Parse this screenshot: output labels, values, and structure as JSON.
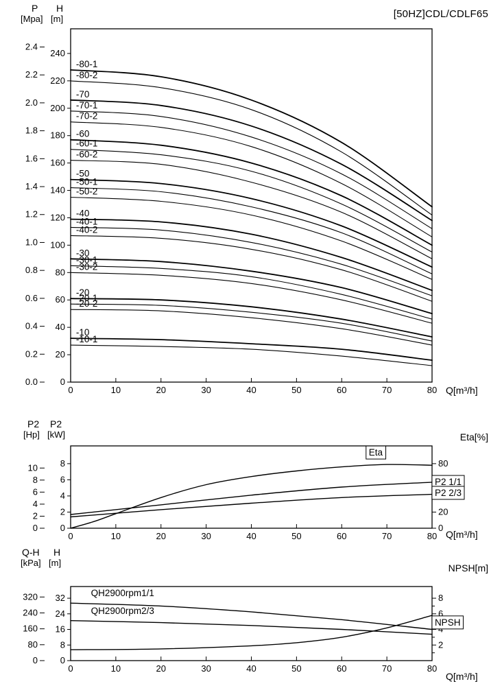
{
  "chart_data": [
    {
      "type": "line",
      "title": "[50HZ]CDL/CDLF65",
      "headers": {
        "left_outer_top": "P",
        "left_outer_unit": "[Mpa]",
        "left_inner_top": "H",
        "left_inner_unit": "[m]"
      },
      "x_axis": {
        "label": "Q[m³/h]",
        "ticks": [
          0,
          10,
          20,
          30,
          40,
          50,
          60,
          70,
          80
        ],
        "range": [
          0,
          80
        ]
      },
      "y_inner": {
        "unit": "m",
        "ticks": [
          0,
          20,
          40,
          60,
          80,
          100,
          120,
          140,
          160,
          180,
          200,
          220,
          240
        ],
        "range": [
          0,
          258
        ]
      },
      "y_outer": {
        "unit": "Mpa",
        "tick_labels": [
          "0.0",
          "0.2",
          "0.4",
          "0.6",
          "0.8",
          "1.0",
          "1.2",
          "1.4",
          "1.6",
          "1.8",
          "2.0",
          "2.2",
          "2.4"
        ],
        "unit_factor": 101.97
      },
      "q_points": [
        0,
        20,
        40,
        60,
        80
      ],
      "series": [
        {
          "name": "-80-1",
          "bold": true,
          "h": [
            228,
            223,
            206,
            175,
            128
          ]
        },
        {
          "name": "-80-2",
          "h": [
            220,
            215,
            199,
            168,
            122
          ]
        },
        {
          "name": "-70",
          "bold": true,
          "h": [
            206,
            202,
            187,
            159,
            118
          ]
        },
        {
          "name": "-70-1",
          "h": [
            198,
            194,
            179,
            152,
            112
          ]
        },
        {
          "name": "-70-2",
          "h": [
            190,
            186,
            172,
            145,
            106
          ]
        },
        {
          "name": "-60",
          "bold": true,
          "h": [
            177,
            173,
            160,
            136,
            100
          ]
        },
        {
          "name": "-60-1",
          "h": [
            170,
            166,
            154,
            130,
            95
          ]
        },
        {
          "name": "-60-2",
          "h": [
            162,
            159,
            146,
            124,
            90
          ]
        },
        {
          "name": "-50",
          "bold": true,
          "h": [
            148,
            145,
            134,
            114,
            84
          ]
        },
        {
          "name": "-50-1",
          "h": [
            142,
            139,
            128,
            109,
            79
          ]
        },
        {
          "name": "-50-2",
          "h": [
            135,
            132,
            122,
            103,
            75
          ]
        },
        {
          "name": "-40",
          "bold": true,
          "h": [
            119,
            117,
            108,
            91,
            67
          ]
        },
        {
          "name": "-40-1",
          "h": [
            113,
            111,
            102,
            86,
            63
          ]
        },
        {
          "name": "-40-2",
          "h": [
            107,
            105,
            97,
            82,
            59
          ]
        },
        {
          "name": "-30",
          "bold": true,
          "h": [
            90,
            88,
            81,
            69,
            50
          ]
        },
        {
          "name": "-30-1",
          "h": [
            85,
            83,
            77,
            64,
            46
          ]
        },
        {
          "name": "-30-2",
          "h": [
            80,
            78,
            72,
            60,
            43
          ]
        },
        {
          "name": "-20",
          "bold": true,
          "h": [
            61,
            60,
            55,
            46,
            33
          ]
        },
        {
          "name": "-20-1",
          "h": [
            57,
            56,
            51,
            43,
            30
          ]
        },
        {
          "name": "-20-2",
          "h": [
            53,
            52,
            47,
            39,
            27
          ]
        },
        {
          "name": "-10",
          "bold": true,
          "h": [
            32,
            31,
            28,
            24,
            16
          ]
        },
        {
          "name": "-10-1",
          "h": [
            27,
            26,
            24,
            19,
            12
          ]
        }
      ]
    },
    {
      "type": "line",
      "headers": {
        "left_outer_top": "P2",
        "left_outer_unit": "[Hp]",
        "left_inner_top": "P2",
        "left_inner_unit": "[kW]",
        "right": "Eta[%]"
      },
      "x_axis": {
        "label": "Q[m³/h]",
        "ticks": [
          0,
          10,
          20,
          30,
          40,
          50,
          60,
          70,
          80
        ],
        "range": [
          0,
          80
        ]
      },
      "y_inner": {
        "unit": "kW",
        "ticks": [
          0,
          2,
          4,
          6,
          8
        ],
        "range": [
          0,
          10.2
        ]
      },
      "y_outer": {
        "unit": "Hp",
        "tick_labels": [
          "0",
          "2",
          "4",
          "6",
          "8",
          "10"
        ],
        "unit_factor": 0.7457
      },
      "y_right": {
        "unit": "%",
        "ticks": [
          0,
          20,
          40,
          60,
          80
        ],
        "unit_factor": 0.1
      },
      "series": [
        {
          "name": "Eta",
          "scale": "right",
          "x": [
            0,
            5,
            10,
            20,
            30,
            40,
            50,
            60,
            70,
            80
          ],
          "y": [
            0,
            8,
            18,
            38,
            54,
            64,
            71,
            76,
            79,
            78
          ],
          "label": {
            "q": 66,
            "v": 90,
            "boxed": true
          }
        },
        {
          "name": "P2 1/1",
          "scale": "left",
          "x": [
            0,
            20,
            40,
            60,
            80
          ],
          "y": [
            1.7,
            2.9,
            4.1,
            5.1,
            5.7
          ],
          "label": {
            "q": 80.6,
            "v": 5.35,
            "boxed": true
          }
        },
        {
          "name": "P2 2/3",
          "scale": "left",
          "x": [
            0,
            20,
            40,
            60,
            80
          ],
          "y": [
            1.4,
            2.3,
            3.1,
            3.8,
            4.2
          ],
          "label": {
            "q": 80.6,
            "v": 4.0,
            "boxed": true
          }
        }
      ]
    },
    {
      "type": "line",
      "headers": {
        "left_outer_top": "Q-H",
        "left_outer_unit": "[kPa]",
        "left_inner_top": "H",
        "left_inner_unit": "[m]",
        "right": "NPSH[m]"
      },
      "x_axis": {
        "label": "Q[m³/h]",
        "ticks": [
          0,
          10,
          20,
          30,
          40,
          50,
          60,
          70,
          80
        ],
        "range": [
          0,
          80
        ]
      },
      "y_inner": {
        "unit": "m",
        "ticks": [
          0,
          8,
          16,
          24,
          32
        ],
        "range": [
          0,
          38
        ]
      },
      "y_outer": {
        "unit": "kPa",
        "tick_labels": [
          "0",
          "80",
          "160",
          "240",
          "320"
        ],
        "unit_factor": 0.10197
      },
      "y_right": {
        "unit": "m",
        "ticks": [
          1,
          2,
          3,
          4,
          5,
          6,
          7,
          8
        ],
        "labeled": [
          2,
          4,
          6,
          8
        ],
        "unit_factor": 4
      },
      "series": [
        {
          "name": "QH2900rpm1/1",
          "scale": "left",
          "x": [
            0,
            20,
            40,
            60,
            80
          ],
          "y": [
            29.5,
            28,
            25,
            21,
            16
          ],
          "label": {
            "q": 4.5,
            "v": 33,
            "boxed": false
          }
        },
        {
          "name": "QH2900rpm2/3",
          "scale": "left",
          "x": [
            0,
            20,
            40,
            60,
            80
          ],
          "y": [
            20.5,
            19.5,
            18,
            16,
            13.5
          ],
          "label": {
            "q": 4.5,
            "v": 24,
            "boxed": false
          }
        },
        {
          "name": "NPSH",
          "scale": "right",
          "x": [
            0,
            20,
            40,
            50,
            60,
            70,
            80
          ],
          "y": [
            1.4,
            1.5,
            1.9,
            2.3,
            3.0,
            4.2,
            5.8
          ],
          "label": {
            "q": 80.6,
            "v": 4.5,
            "boxed": true
          }
        }
      ]
    }
  ]
}
